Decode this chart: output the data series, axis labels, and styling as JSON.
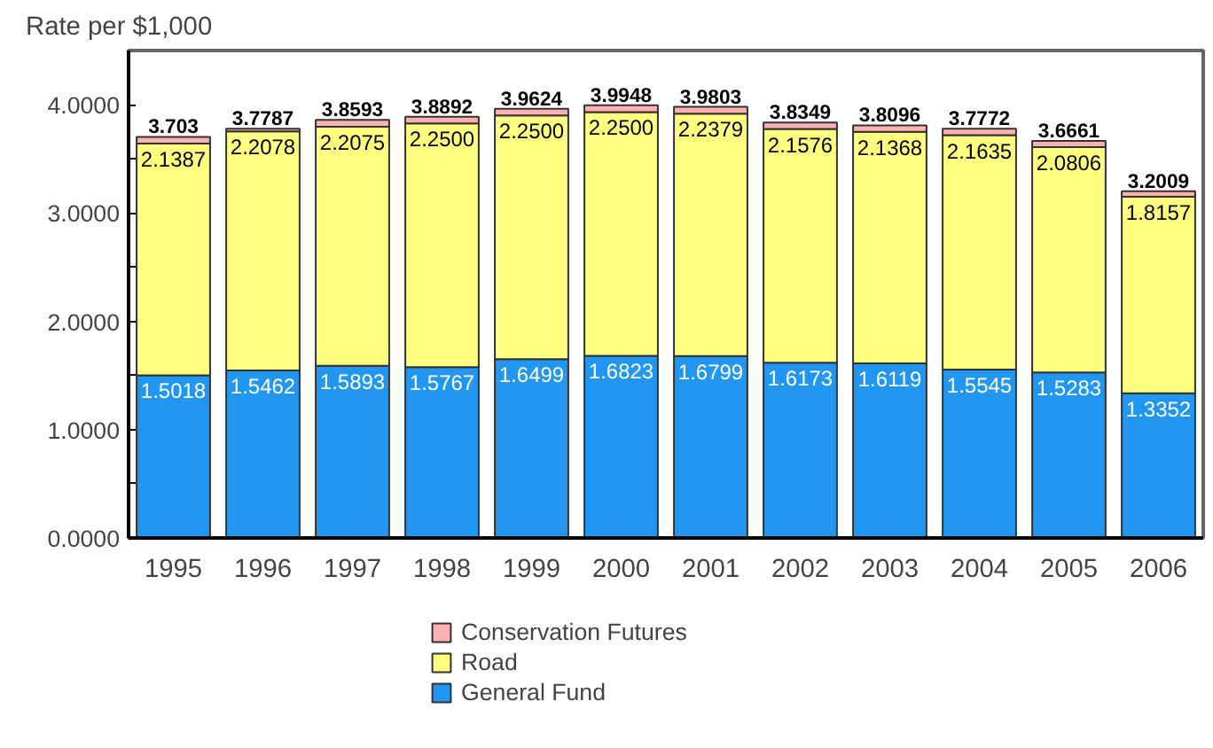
{
  "chart_data": {
    "type": "bar",
    "stacked": true,
    "ylabel": "Rate per $1,000",
    "categories": [
      "1995",
      "1996",
      "1997",
      "1998",
      "1999",
      "2000",
      "2001",
      "2002",
      "2003",
      "2004",
      "2005",
      "2006"
    ],
    "series": [
      {
        "name": "General Fund",
        "color": "#2196f3",
        "values": [
          1.5018,
          1.5462,
          1.5893,
          1.5767,
          1.6499,
          1.6823,
          1.6799,
          1.6173,
          1.6119,
          1.5545,
          1.5283,
          1.3352
        ],
        "value_labels": [
          "1.5018",
          "1.5462",
          "1.5893",
          "1.5767",
          "1.6499",
          "1.6823",
          "1.6799",
          "1.6173",
          "1.6119",
          "1.5545",
          "1.5283",
          "1.3352"
        ]
      },
      {
        "name": "Road",
        "color": "#ffff80",
        "values": [
          2.1387,
          2.2078,
          2.2075,
          2.25,
          2.25,
          2.25,
          2.2379,
          2.1576,
          2.1368,
          2.1635,
          2.0806,
          1.8157
        ],
        "value_labels": [
          "2.1387",
          "2.2078",
          "2.2075",
          "2.2500",
          "2.2500",
          "2.2500",
          "2.2379",
          "2.1576",
          "2.1368",
          "2.1635",
          "2.0806",
          "1.8157"
        ]
      },
      {
        "name": "Conservation Futures",
        "color": "#ffb0b0",
        "values": [
          0.0625,
          0.0247,
          0.0625,
          0.0625,
          0.0625,
          0.0625,
          0.0625,
          0.06,
          0.0609,
          0.0592,
          0.0572,
          0.05
        ]
      }
    ],
    "totals": [
      "3.703",
      "3.7787",
      "3.8593",
      "3.8892",
      "3.9624",
      "3.9948",
      "3.9803",
      "3.8349",
      "3.8096",
      "3.7772",
      "3.6661",
      "3.2009"
    ],
    "ylim": [
      0,
      4.5
    ],
    "yticks": [
      {
        "value": 0,
        "label": "0.0000"
      },
      {
        "value": 0.5,
        "label": null
      },
      {
        "value": 1,
        "label": "1.0000"
      },
      {
        "value": 1.5,
        "label": null
      },
      {
        "value": 2,
        "label": "2.0000"
      },
      {
        "value": 2.5,
        "label": null
      },
      {
        "value": 3,
        "label": "3.0000"
      },
      {
        "value": 3.5,
        "label": null
      },
      {
        "value": 4,
        "label": "4.0000"
      }
    ],
    "grid": false,
    "legend": "bottom"
  }
}
